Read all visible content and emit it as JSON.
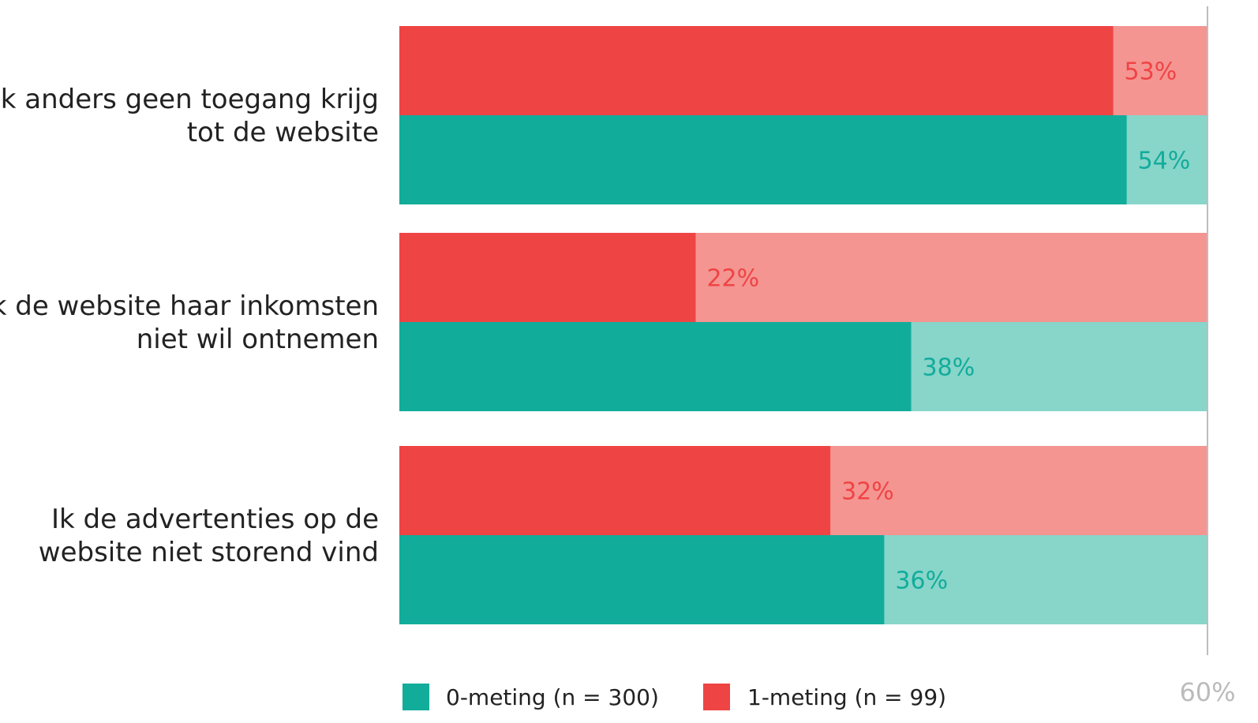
{
  "chart_data": {
    "type": "bar",
    "orientation": "horizontal",
    "xlim": [
      0,
      60
    ],
    "x_tick_labels": [
      "60%"
    ],
    "value_suffix": "%",
    "categories": [
      [
        "Ik anders geen toegang krijg",
        "tot de website"
      ],
      [
        "Ik de website haar inkomsten",
        "niet wil ontnemen"
      ],
      [
        "Ik de advertenties op de",
        "website niet storend vind"
      ]
    ],
    "series": [
      {
        "name": "1-meting (n = 99)",
        "values": [
          53,
          22,
          32
        ],
        "color": "#ef4444",
        "background_color": "#f49592",
        "label_color": "#ef4444"
      },
      {
        "name": "0-meting (n = 300)",
        "values": [
          54,
          38,
          36
        ],
        "color": "#12ac9b",
        "background_color": "#88d5ca",
        "label_color": "#12ac9b"
      }
    ],
    "legend": {
      "placement": "bottom",
      "items": [
        {
          "label": "0-meting (n = 300)",
          "color": "#12ac9b"
        },
        {
          "label": "1-meting (n = 99)",
          "color": "#ef4444"
        }
      ]
    },
    "grid": false
  }
}
